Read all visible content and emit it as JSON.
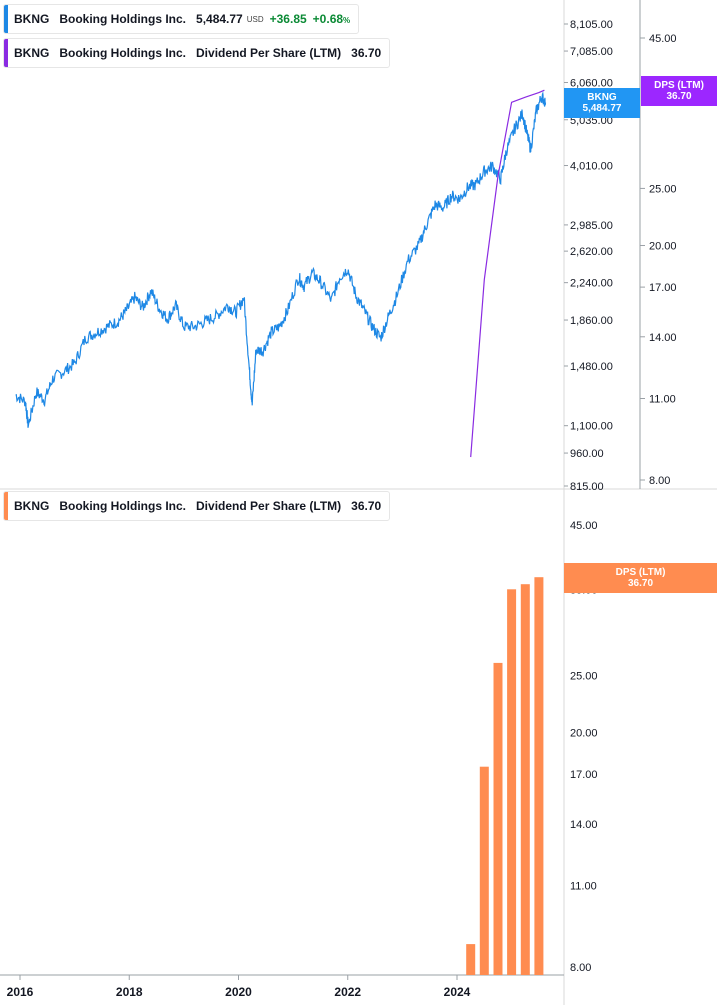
{
  "legend_price": {
    "ticker": "BKNG",
    "name": "Booking Holdings Inc.",
    "price": "5,484.77",
    "currency": "USD",
    "change": "+36.85",
    "change_pct": "+0.68",
    "pct_sign": "%"
  },
  "legend_dps_top": {
    "ticker": "BKNG",
    "name": "Booking Holdings Inc.",
    "metric": "Dividend Per Share (LTM)",
    "value": "36.70"
  },
  "legend_dps_bottom": {
    "ticker": "BKNG",
    "name": "Booking Holdings Inc.",
    "metric": "Dividend Per Share (LTM)",
    "value": "36.70"
  },
  "tags": {
    "price_ticker": "BKNG",
    "price_value": "5,484.77",
    "dps_top_label": "DPS (LTM)",
    "dps_top_value": "36.70",
    "dps_bottom_label": "DPS (LTM)",
    "dps_bottom_value": "36.70"
  },
  "colors": {
    "price_line": "#1e88e5",
    "dps_line": "#8a2be2",
    "dps_bar": "#ff8c50",
    "price_tag": "#2196f3",
    "dps_tag": "#9c27ff",
    "positive": "#0b8a35"
  },
  "chart_data": [
    {
      "type": "line",
      "series": [
        {
          "name": "BKNG",
          "scale": "log",
          "x": [
            2015.92,
            2016.1,
            2016.15,
            2016.3,
            2016.45,
            2016.6,
            2016.8,
            2017.0,
            2017.2,
            2017.4,
            2017.6,
            2017.8,
            2017.95,
            2018.1,
            2018.25,
            2018.4,
            2018.55,
            2018.7,
            2018.85,
            2019.0,
            2019.2,
            2019.4,
            2019.6,
            2019.8,
            2019.95,
            2020.1,
            2020.2,
            2020.25,
            2020.32,
            2020.45,
            2020.6,
            2020.75,
            2020.9,
            2021.1,
            2021.2,
            2021.35,
            2021.5,
            2021.7,
            2021.85,
            2022.0,
            2022.15,
            2022.3,
            2022.45,
            2022.6,
            2022.75,
            2022.9,
            2023.1,
            2023.3,
            2023.45,
            2023.6,
            2023.75,
            2023.9,
            2024.05,
            2024.2,
            2024.35,
            2024.5,
            2024.65,
            2024.8,
            2024.9,
            2025.05,
            2025.2,
            2025.28,
            2025.35,
            2025.45,
            2025.55,
            2025.62
          ],
          "y": [
            1280,
            1240,
            1100,
            1300,
            1250,
            1390,
            1440,
            1500,
            1700,
            1750,
            1800,
            1850,
            1950,
            2080,
            1980,
            2150,
            1970,
            1870,
            2000,
            1800,
            1800,
            1850,
            1900,
            2000,
            1930,
            2080,
            1450,
            1220,
            1600,
            1600,
            1750,
            1800,
            1950,
            2300,
            2200,
            2350,
            2250,
            2050,
            2300,
            2400,
            2100,
            1950,
            1800,
            1700,
            1900,
            2100,
            2500,
            2700,
            3000,
            3300,
            3250,
            3450,
            3400,
            3600,
            3650,
            3900,
            4000,
            3750,
            4300,
            4800,
            5200,
            4700,
            4350,
            5250,
            5650,
            5484.77
          ]
        }
      ],
      "ylim": [
        815,
        8105
      ],
      "yticks": [
        "8,105.00",
        "7,085.00",
        "6,060.00",
        "5,035.00",
        "4,010.00",
        "2,985.00",
        "2,620.00",
        "2,240.00",
        "1,860.00",
        "1,480.00",
        "1,100.00",
        "960.00",
        "815.00"
      ]
    },
    {
      "type": "line",
      "series": [
        {
          "name": "Dividend Per Share (LTM)",
          "scale": "log",
          "x": [
            2024.25,
            2024.5,
            2024.75,
            2025.0,
            2025.25,
            2025.5,
            2025.6
          ],
          "y": [
            8.75,
            17.5,
            26.25,
            35.0,
            35.7,
            36.35,
            36.7
          ]
        }
      ],
      "ylim": [
        8,
        45
      ],
      "yticks": [
        "45.00",
        "25.00",
        "20.00",
        "17.00",
        "14.00",
        "11.00",
        "8.00"
      ]
    },
    {
      "type": "bar",
      "series": [
        {
          "name": "Dividend Per Share (LTM)",
          "x": [
            2024.25,
            2024.5,
            2024.75,
            2025.0,
            2025.25,
            2025.5
          ],
          "values": [
            8.75,
            17.5,
            26.25,
            35.0,
            35.7,
            36.7
          ]
        }
      ],
      "scale": "log",
      "ylim": [
        8,
        45
      ],
      "yticks": [
        "45.00",
        "35.00",
        "25.00",
        "20.00",
        "17.00",
        "14.00",
        "11.00",
        "8.00"
      ],
      "xticks": [
        "2016",
        "2018",
        "2020",
        "2022",
        "2024"
      ]
    }
  ]
}
